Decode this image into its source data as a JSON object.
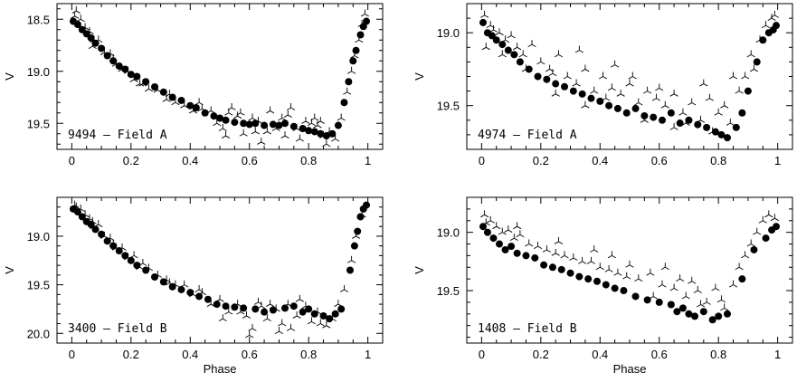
{
  "figure": {
    "background": "#ffffff",
    "dot_color": "#000000",
    "cross_color": "#000000"
  },
  "chart_data": [
    {
      "id": "p1",
      "type": "scatter",
      "title": "",
      "xlabel": "",
      "ylabel": "V",
      "panel_label": "9494 – Field A",
      "xlim": [
        -0.05,
        1.05
      ],
      "ylim": [
        19.75,
        18.35
      ],
      "y_inverted": true,
      "xticks": [
        0,
        0.2,
        0.4,
        0.6,
        0.8,
        1
      ],
      "xticklabels": [
        "0",
        "0.2",
        "0.4",
        "0.6",
        "0.8",
        "1"
      ],
      "yticks": [
        18.5,
        19.0,
        19.5
      ],
      "yticklabels": [
        "18.5",
        "19.0",
        "19.5"
      ],
      "series": [
        {
          "marker": "filled-circle",
          "x": [
            0.005,
            0.02,
            0.035,
            0.05,
            0.065,
            0.08,
            0.1,
            0.12,
            0.14,
            0.16,
            0.18,
            0.2,
            0.22,
            0.25,
            0.28,
            0.31,
            0.34,
            0.37,
            0.4,
            0.42,
            0.45,
            0.48,
            0.5,
            0.52,
            0.55,
            0.58,
            0.6,
            0.62,
            0.65,
            0.68,
            0.7,
            0.72,
            0.75,
            0.78,
            0.8,
            0.82,
            0.84,
            0.86,
            0.88,
            0.9,
            0.92,
            0.935,
            0.95,
            0.96,
            0.975,
            0.985,
            0.995
          ],
          "y": [
            18.52,
            18.55,
            18.6,
            18.64,
            18.68,
            18.73,
            18.78,
            18.85,
            18.9,
            18.95,
            18.98,
            19.03,
            19.05,
            19.1,
            19.15,
            19.2,
            19.25,
            19.28,
            19.33,
            19.35,
            19.4,
            19.43,
            19.45,
            19.47,
            19.49,
            19.5,
            19.51,
            19.5,
            19.52,
            19.51,
            19.52,
            19.5,
            19.53,
            19.55,
            19.57,
            19.58,
            19.6,
            19.62,
            19.6,
            19.52,
            19.3,
            19.1,
            18.9,
            18.8,
            18.65,
            18.57,
            18.52
          ]
        },
        {
          "marker": "tri-cross",
          "x": [
            0.01,
            0.03,
            0.045,
            0.06,
            0.075,
            0.09,
            0.11,
            0.13,
            0.15,
            0.17,
            0.19,
            0.21,
            0.23,
            0.26,
            0.29,
            0.32,
            0.35,
            0.38,
            0.41,
            0.44,
            0.47,
            0.49,
            0.51,
            0.53,
            0.56,
            0.58,
            0.61,
            0.63,
            0.66,
            0.69,
            0.71,
            0.73,
            0.76,
            0.79,
            0.81,
            0.83,
            0.85,
            0.87,
            0.89,
            0.91,
            0.93,
            0.945,
            0.955,
            0.97,
            0.98,
            0.99,
            0.015,
            0.07,
            0.14,
            0.24,
            0.33,
            0.43,
            0.52,
            0.57,
            0.62,
            0.67,
            0.72,
            0.77,
            0.82,
            0.86,
            0.54,
            0.64,
            0.74,
            0.84
          ],
          "y": [
            18.47,
            18.5,
            18.58,
            18.62,
            18.7,
            18.7,
            18.82,
            18.83,
            18.93,
            18.98,
            19.0,
            19.08,
            19.12,
            19.17,
            19.18,
            19.27,
            19.3,
            19.33,
            19.38,
            19.36,
            19.38,
            19.5,
            19.55,
            19.4,
            19.43,
            19.6,
            19.45,
            19.48,
            19.58,
            19.55,
            19.45,
            19.42,
            19.55,
            19.48,
            19.5,
            19.52,
            19.62,
            19.58,
            19.65,
            19.45,
            19.2,
            19.0,
            18.85,
            18.7,
            18.55,
            18.45,
            18.42,
            18.76,
            18.88,
            19.12,
            19.22,
            19.3,
            19.62,
            19.4,
            19.58,
            19.38,
            19.62,
            19.65,
            19.45,
            19.7,
            19.35,
            19.68,
            19.35,
            19.48
          ]
        }
      ]
    },
    {
      "id": "p2",
      "type": "scatter",
      "title": "",
      "xlabel": "",
      "ylabel": "V",
      "panel_label": "4974 – Field A",
      "xlim": [
        -0.05,
        1.05
      ],
      "ylim": [
        19.8,
        18.8
      ],
      "y_inverted": true,
      "xticks": [
        0,
        0.2,
        0.4,
        0.6,
        0.8,
        1
      ],
      "xticklabels": [
        "0",
        "0.2",
        "0.4",
        "0.6",
        "0.8",
        "1"
      ],
      "yticks": [
        19.0,
        19.5
      ],
      "yticklabels": [
        "19.0",
        "19.5"
      ],
      "series": [
        {
          "marker": "filled-circle",
          "x": [
            0.005,
            0.02,
            0.035,
            0.05,
            0.07,
            0.09,
            0.11,
            0.13,
            0.16,
            0.19,
            0.22,
            0.25,
            0.28,
            0.31,
            0.34,
            0.37,
            0.4,
            0.43,
            0.46,
            0.49,
            0.52,
            0.55,
            0.58,
            0.61,
            0.64,
            0.67,
            0.7,
            0.73,
            0.76,
            0.79,
            0.81,
            0.83,
            0.86,
            0.88,
            0.9,
            0.93,
            0.95,
            0.97,
            0.985,
            0.995
          ],
          "y": [
            18.93,
            19.0,
            19.02,
            19.05,
            19.08,
            19.12,
            19.15,
            19.2,
            19.25,
            19.3,
            19.32,
            19.35,
            19.37,
            19.4,
            19.42,
            19.45,
            19.47,
            19.5,
            19.52,
            19.55,
            19.52,
            19.57,
            19.58,
            19.6,
            19.55,
            19.62,
            19.6,
            19.63,
            19.65,
            19.68,
            19.7,
            19.72,
            19.65,
            19.55,
            19.4,
            19.2,
            19.05,
            19.0,
            18.98,
            18.95
          ]
        },
        {
          "marker": "tri-cross",
          "x": [
            0.01,
            0.03,
            0.04,
            0.06,
            0.08,
            0.1,
            0.12,
            0.14,
            0.17,
            0.2,
            0.23,
            0.26,
            0.29,
            0.32,
            0.35,
            0.38,
            0.41,
            0.44,
            0.47,
            0.5,
            0.53,
            0.56,
            0.59,
            0.62,
            0.65,
            0.68,
            0.71,
            0.74,
            0.77,
            0.8,
            0.82,
            0.84,
            0.87,
            0.89,
            0.91,
            0.94,
            0.96,
            0.98,
            0.99,
            0.015,
            0.07,
            0.15,
            0.24,
            0.33,
            0.42,
            0.51,
            0.6,
            0.69,
            0.78,
            0.85,
            0.45,
            0.55,
            0.65,
            0.75,
            0.25,
            0.35,
            0.92
          ],
          "y": [
            18.88,
            18.95,
            18.98,
            19.0,
            19.05,
            19.02,
            19.1,
            19.15,
            19.08,
            19.2,
            19.25,
            19.15,
            19.3,
            19.35,
            19.25,
            19.4,
            19.3,
            19.38,
            19.42,
            19.35,
            19.48,
            19.4,
            19.45,
            19.5,
            19.42,
            19.55,
            19.48,
            19.6,
            19.45,
            19.55,
            19.5,
            19.62,
            19.4,
            19.3,
            19.15,
            19.05,
            18.95,
            18.9,
            18.88,
            19.1,
            19.15,
            19.25,
            19.28,
            19.12,
            19.45,
            19.3,
            19.38,
            19.62,
            19.68,
            19.3,
            19.22,
            19.6,
            19.65,
            19.35,
            19.42,
            19.5,
            19.25
          ]
        }
      ]
    },
    {
      "id": "p3",
      "type": "scatter",
      "title": "",
      "xlabel": "Phase",
      "ylabel": "V",
      "panel_label": "3400 – Field B",
      "xlim": [
        -0.05,
        1.05
      ],
      "ylim": [
        20.1,
        18.6
      ],
      "y_inverted": true,
      "xticks": [
        0,
        0.2,
        0.4,
        0.6,
        0.8,
        1
      ],
      "xticklabels": [
        "0",
        "0.2",
        "0.4",
        "0.6",
        "0.8",
        "1"
      ],
      "yticks": [
        19.0,
        19.5,
        20.0
      ],
      "yticklabels": [
        "19.0",
        "19.5",
        "20.0"
      ],
      "series": [
        {
          "marker": "filled-circle",
          "x": [
            0.005,
            0.02,
            0.035,
            0.05,
            0.065,
            0.08,
            0.1,
            0.12,
            0.14,
            0.16,
            0.18,
            0.2,
            0.22,
            0.25,
            0.28,
            0.31,
            0.34,
            0.37,
            0.4,
            0.43,
            0.46,
            0.49,
            0.52,
            0.55,
            0.58,
            0.62,
            0.65,
            0.68,
            0.72,
            0.75,
            0.78,
            0.8,
            0.82,
            0.85,
            0.87,
            0.89,
            0.91,
            0.94,
            0.955,
            0.965,
            0.975,
            0.985,
            0.995
          ],
          "y": [
            18.72,
            18.75,
            18.8,
            18.85,
            18.88,
            18.93,
            18.98,
            19.05,
            19.1,
            19.15,
            19.2,
            19.25,
            19.3,
            19.35,
            19.42,
            19.47,
            19.52,
            19.55,
            19.58,
            19.62,
            19.65,
            19.7,
            19.72,
            19.73,
            19.74,
            19.75,
            19.78,
            19.76,
            19.74,
            19.72,
            19.78,
            19.75,
            19.8,
            19.82,
            19.85,
            19.8,
            19.75,
            19.35,
            19.1,
            18.95,
            18.8,
            18.72,
            18.68
          ]
        },
        {
          "marker": "tri-cross",
          "x": [
            0.01,
            0.03,
            0.045,
            0.06,
            0.075,
            0.09,
            0.11,
            0.13,
            0.15,
            0.17,
            0.19,
            0.21,
            0.23,
            0.26,
            0.29,
            0.32,
            0.35,
            0.38,
            0.41,
            0.44,
            0.47,
            0.5,
            0.53,
            0.56,
            0.59,
            0.61,
            0.63,
            0.66,
            0.69,
            0.71,
            0.73,
            0.76,
            0.79,
            0.81,
            0.83,
            0.86,
            0.88,
            0.9,
            0.92,
            0.945,
            0.96,
            0.98,
            0.015,
            0.07,
            0.14,
            0.24,
            0.33,
            0.43,
            0.51,
            0.57,
            0.64,
            0.7,
            0.77,
            0.84,
            0.6,
            0.67,
            0.74
          ],
          "y": [
            18.68,
            18.72,
            18.78,
            18.82,
            18.9,
            18.88,
            19.0,
            19.02,
            19.12,
            19.12,
            19.22,
            19.2,
            19.32,
            19.33,
            19.4,
            19.45,
            19.5,
            19.5,
            19.6,
            19.58,
            19.7,
            19.65,
            19.78,
            19.7,
            19.82,
            19.95,
            19.68,
            19.85,
            19.75,
            19.9,
            19.7,
            19.82,
            19.72,
            19.88,
            19.78,
            19.92,
            19.85,
            19.7,
            19.55,
            19.25,
            19.0,
            18.78,
            18.7,
            18.85,
            19.08,
            19.28,
            19.48,
            19.55,
            19.85,
            19.78,
            19.72,
            19.98,
            19.65,
            19.9,
            20.02,
            19.7,
            19.95
          ]
        }
      ]
    },
    {
      "id": "p4",
      "type": "scatter",
      "title": "",
      "xlabel": "Phase",
      "ylabel": "V",
      "panel_label": "1408 – Field B",
      "xlim": [
        -0.05,
        1.05
      ],
      "ylim": [
        19.95,
        18.7
      ],
      "y_inverted": true,
      "xticks": [
        0,
        0.2,
        0.4,
        0.6,
        0.8,
        1
      ],
      "xticklabels": [
        "0",
        "0.2",
        "0.4",
        "0.6",
        "0.8",
        "1"
      ],
      "yticks": [
        19.0,
        19.5
      ],
      "yticklabels": [
        "19.0",
        "19.5"
      ],
      "series": [
        {
          "marker": "filled-circle",
          "x": [
            0.005,
            0.02,
            0.04,
            0.06,
            0.08,
            0.1,
            0.12,
            0.15,
            0.18,
            0.21,
            0.24,
            0.27,
            0.3,
            0.33,
            0.36,
            0.39,
            0.42,
            0.45,
            0.48,
            0.52,
            0.56,
            0.6,
            0.64,
            0.66,
            0.68,
            0.7,
            0.72,
            0.75,
            0.78,
            0.8,
            0.83,
            0.88,
            0.92,
            0.96,
            0.98,
            0.995
          ],
          "y": [
            18.95,
            19.0,
            19.05,
            19.1,
            19.15,
            19.12,
            19.18,
            19.2,
            19.22,
            19.28,
            19.3,
            19.32,
            19.35,
            19.38,
            19.4,
            19.42,
            19.45,
            19.48,
            19.5,
            19.55,
            19.58,
            19.6,
            19.62,
            19.68,
            19.65,
            19.7,
            19.72,
            19.68,
            19.75,
            19.72,
            19.7,
            19.4,
            19.15,
            19.05,
            18.98,
            18.95
          ]
        },
        {
          "marker": "tri-cross",
          "x": [
            0.01,
            0.03,
            0.05,
            0.07,
            0.09,
            0.11,
            0.13,
            0.16,
            0.19,
            0.22,
            0.25,
            0.28,
            0.31,
            0.34,
            0.37,
            0.4,
            0.43,
            0.46,
            0.49,
            0.53,
            0.57,
            0.61,
            0.65,
            0.69,
            0.71,
            0.73,
            0.76,
            0.79,
            0.82,
            0.85,
            0.87,
            0.89,
            0.91,
            0.93,
            0.95,
            0.97,
            0.99,
            0.015,
            0.12,
            0.26,
            0.38,
            0.5,
            0.58,
            0.67,
            0.74,
            0.81,
            0.44,
            0.62
          ],
          "y": [
            18.85,
            18.9,
            18.95,
            19.0,
            18.98,
            19.05,
            19.02,
            19.1,
            19.12,
            19.15,
            19.18,
            19.2,
            19.22,
            19.25,
            19.25,
            19.3,
            19.32,
            19.35,
            19.38,
            19.4,
            19.35,
            19.45,
            19.48,
            19.55,
            19.42,
            19.5,
            19.6,
            19.48,
            19.65,
            19.45,
            19.3,
            19.2,
            19.1,
            19.0,
            18.9,
            18.85,
            18.88,
            18.92,
            18.95,
            19.08,
            19.15,
            19.28,
            19.55,
            19.4,
            19.62,
            19.58,
            19.2,
            19.3
          ]
        }
      ]
    }
  ]
}
